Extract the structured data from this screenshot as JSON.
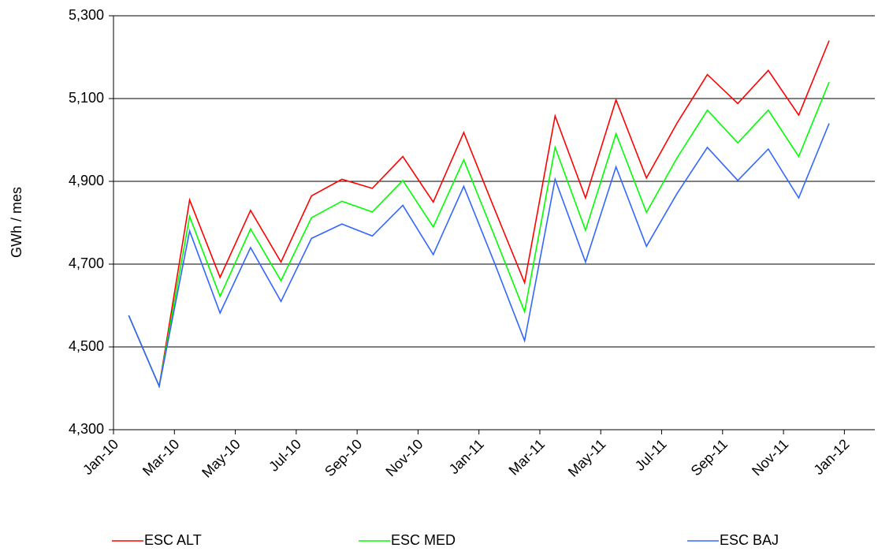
{
  "chart_data": {
    "type": "line",
    "y_label": "GWh / mes",
    "x": [
      "2010-01",
      "2010-02",
      "2010-03",
      "2010-04",
      "2010-05",
      "2010-06",
      "2010-07",
      "2010-08",
      "2010-09",
      "2010-10",
      "2010-11",
      "2010-12",
      "2011-01",
      "2011-02",
      "2011-03",
      "2011-04",
      "2011-05",
      "2011-06",
      "2011-07",
      "2011-08",
      "2011-09",
      "2011-10",
      "2011-11",
      "2011-12"
    ],
    "series": [
      {
        "name": "ESC ALT",
        "color": "#ff0000",
        "values": [
          4576,
          4405,
          4855,
          4668,
          4830,
          4705,
          4865,
          4905,
          4883,
          4960,
          4850,
          5018,
          4835,
          4655,
          5058,
          4860,
          5097,
          4908,
          5040,
          5158,
          5088,
          5168,
          5060,
          5240
        ]
      },
      {
        "name": "ESC MED",
        "color": "#00ff00",
        "values": [
          4576,
          4405,
          4815,
          4622,
          4785,
          4660,
          4812,
          4852,
          4826,
          4902,
          4790,
          4952,
          4770,
          4585,
          4982,
          4782,
          5015,
          4825,
          4956,
          5072,
          4993,
          5072,
          4960,
          5140
        ]
      },
      {
        "name": "ESC BAJ",
        "color": "#3366ff",
        "values": [
          4576,
          4405,
          4780,
          4582,
          4740,
          4610,
          4762,
          4797,
          4768,
          4842,
          4723,
          4888,
          4705,
          4515,
          4905,
          4705,
          4935,
          4743,
          4870,
          4982,
          4902,
          4978,
          4860,
          5040
        ]
      }
    ],
    "xlim": [
      "2010-01",
      "2012-02"
    ],
    "xticks": [
      {
        "value": "2010-01",
        "label": "Jan-10"
      },
      {
        "value": "2010-03",
        "label": "Mar-10"
      },
      {
        "value": "2010-05",
        "label": "May-10"
      },
      {
        "value": "2010-07",
        "label": "Jul-10"
      },
      {
        "value": "2010-09",
        "label": "Sep-10"
      },
      {
        "value": "2010-11",
        "label": "Nov-10"
      },
      {
        "value": "2011-01",
        "label": "Jan-11"
      },
      {
        "value": "2011-03",
        "label": "Mar-11"
      },
      {
        "value": "2011-05",
        "label": "May-11"
      },
      {
        "value": "2011-07",
        "label": "Jul-11"
      },
      {
        "value": "2011-09",
        "label": "Sep-11"
      },
      {
        "value": "2011-11",
        "label": "Nov-11"
      },
      {
        "value": "2012-01",
        "label": "Jan-12"
      }
    ],
    "ylim": [
      4300,
      5300
    ],
    "yticks": [
      {
        "value": 4300,
        "label": "4,300"
      },
      {
        "value": 4500,
        "label": "4,500"
      },
      {
        "value": 4700,
        "label": "4,700"
      },
      {
        "value": 4900,
        "label": "4,900"
      },
      {
        "value": 5100,
        "label": "5,100"
      },
      {
        "value": 5300,
        "label": "5,300"
      }
    ],
    "grid": true
  }
}
